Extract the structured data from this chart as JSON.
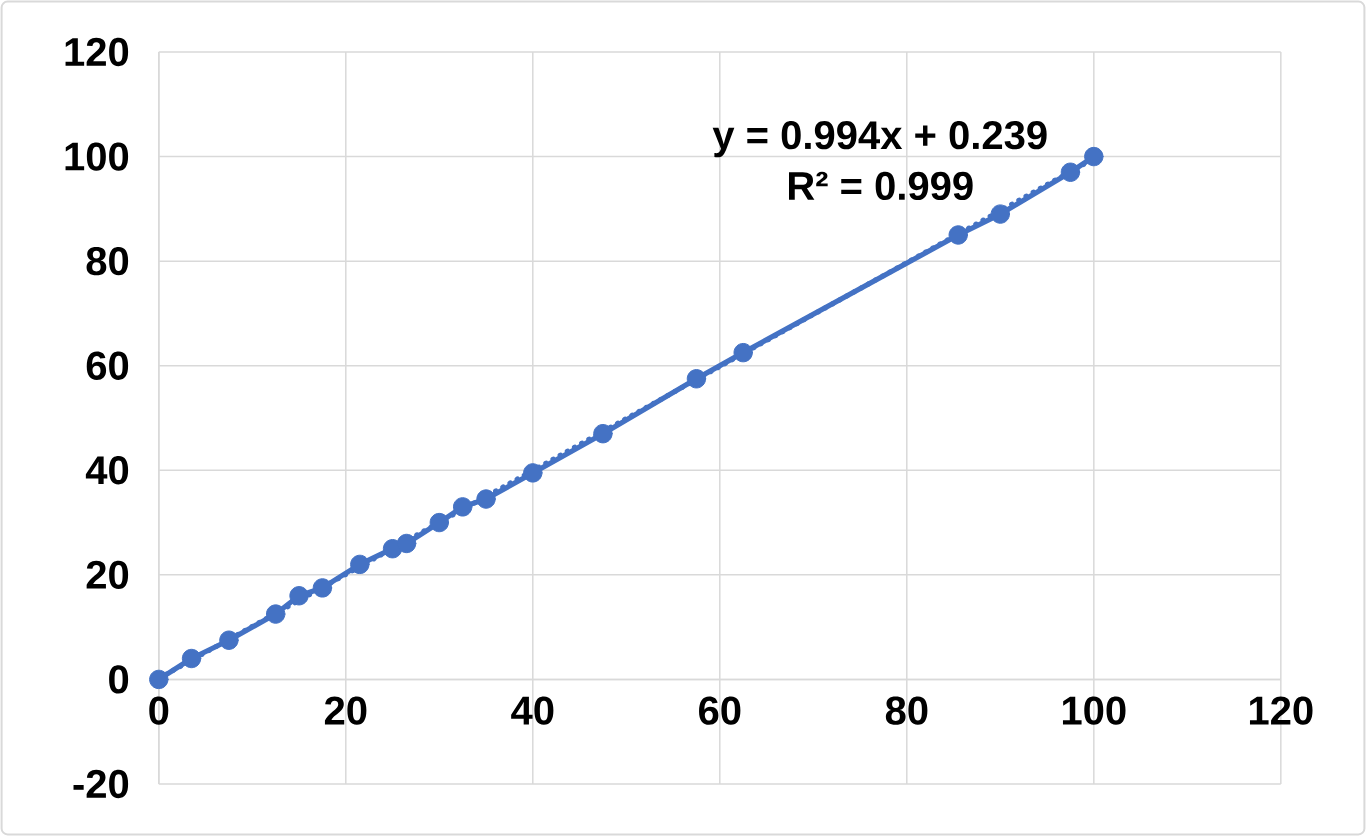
{
  "chart_data": {
    "type": "line",
    "series": [
      {
        "color": "#4472c4",
        "x": [
          0,
          3.5,
          7.5,
          12.5,
          15,
          17.5,
          21.5,
          25,
          26.5,
          30,
          32.5,
          35,
          40,
          47.5,
          57.5,
          62.5,
          85.5,
          90,
          97.5,
          100
        ],
        "values": [
          0,
          4,
          7.5,
          12.5,
          16,
          17.5,
          22,
          25,
          26,
          30,
          33,
          34.5,
          39.5,
          47,
          57.5,
          62.5,
          85,
          89,
          97,
          100
        ]
      },
      {
        "type": "line",
        "color": "#4472c4",
        "x": [
          0,
          100
        ],
        "values": [
          0.2,
          99.6
        ],
        "marker": "none",
        "line_style": "dotted"
      }
    ],
    "marker": "circle",
    "xlim": [
      0,
      120
    ],
    "ylim": [
      -20,
      120
    ],
    "xticks": [
      0,
      20,
      40,
      60,
      80,
      100,
      120
    ],
    "yticks": [
      -20,
      0,
      20,
      40,
      60,
      80,
      100,
      120
    ],
    "grid": true,
    "annotations": [
      "y = 0.994x + 0.239",
      "R² = 0.999"
    ]
  }
}
